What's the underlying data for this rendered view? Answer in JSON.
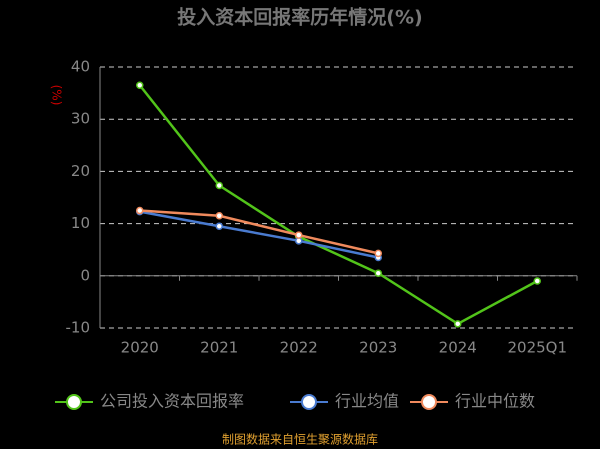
{
  "chart_data": {
    "type": "line",
    "title": "投入资本回报率历年情况(%)",
    "y_label": "(%)",
    "categories": [
      "2020",
      "2021",
      "2022",
      "2023",
      "2024",
      "2025Q1"
    ],
    "series": [
      {
        "name": "公司投入资本回报率",
        "color": "#52c41a",
        "values": [
          36.5,
          17.3,
          7.5,
          0.5,
          -9.2,
          -1.0
        ]
      },
      {
        "name": "行业均值",
        "color": "#4a7bd0",
        "values": [
          12.3,
          9.5,
          6.7,
          3.5,
          null,
          null
        ]
      },
      {
        "name": "行业中位数",
        "color": "#f08a5d",
        "values": [
          12.5,
          11.5,
          7.8,
          4.3,
          null,
          null
        ]
      }
    ],
    "ylim": [
      -10,
      40
    ],
    "yticks": [
      -10,
      0,
      10,
      20,
      30,
      40
    ],
    "grid": true,
    "source": "制图数据来自恒生聚源数据库"
  }
}
